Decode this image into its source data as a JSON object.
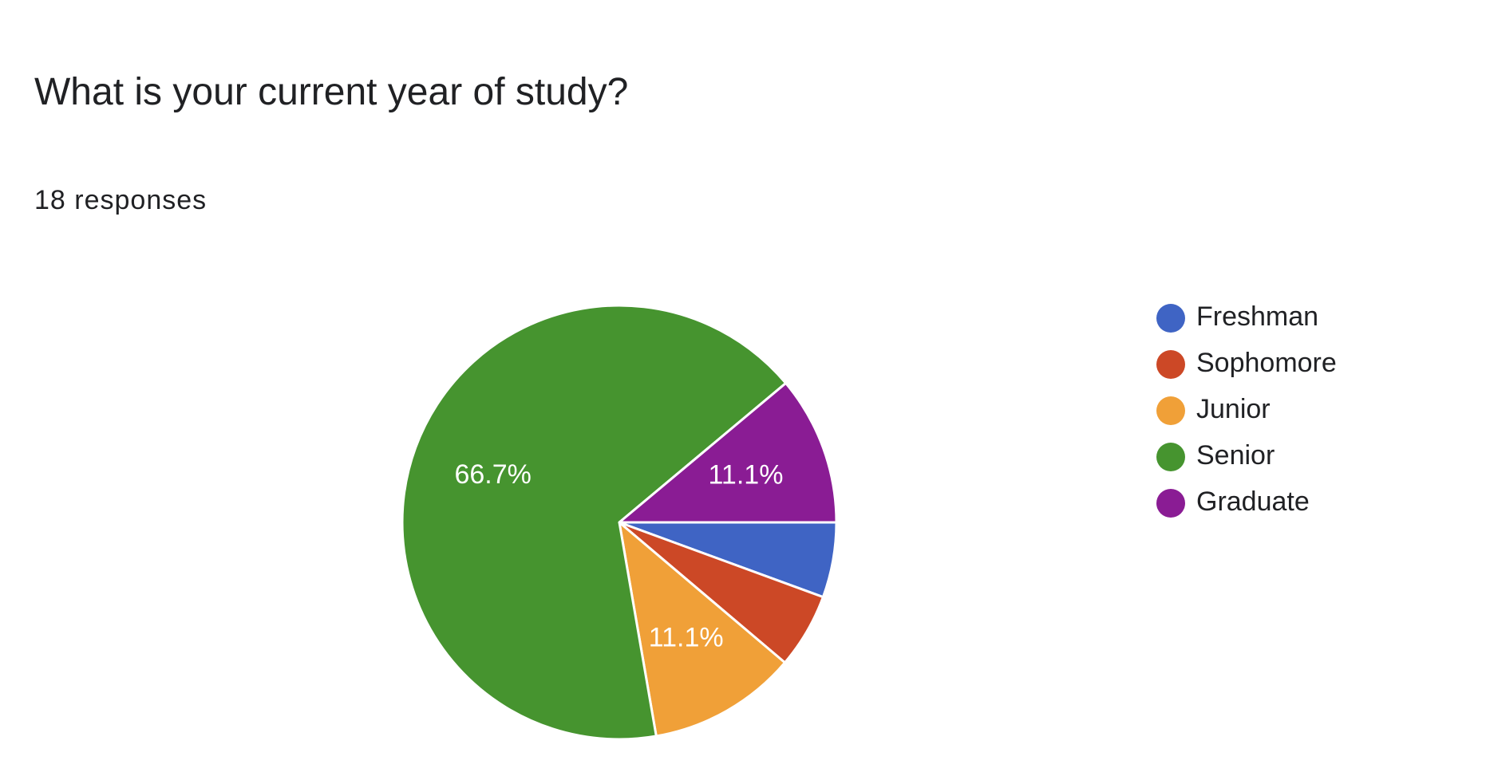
{
  "question": {
    "title": "What is your current year of study?",
    "responses": "18 responses"
  },
  "chart_data": {
    "type": "pie",
    "categories": [
      "Freshman",
      "Sophomore",
      "Junior",
      "Senior",
      "Graduate"
    ],
    "values": [
      5.6,
      5.6,
      11.1,
      66.7,
      11.1
    ],
    "counts": [
      1,
      1,
      2,
      12,
      2
    ],
    "data_labels": [
      "",
      "",
      "11.1%",
      "66.7%",
      "11.1%"
    ],
    "colors": [
      "#3f64c4",
      "#cc4826",
      "#f0a038",
      "#46942f",
      "#8a1c94"
    ],
    "legend_position": "right",
    "start_angle": "3 o'clock",
    "direction": "clockwise"
  }
}
